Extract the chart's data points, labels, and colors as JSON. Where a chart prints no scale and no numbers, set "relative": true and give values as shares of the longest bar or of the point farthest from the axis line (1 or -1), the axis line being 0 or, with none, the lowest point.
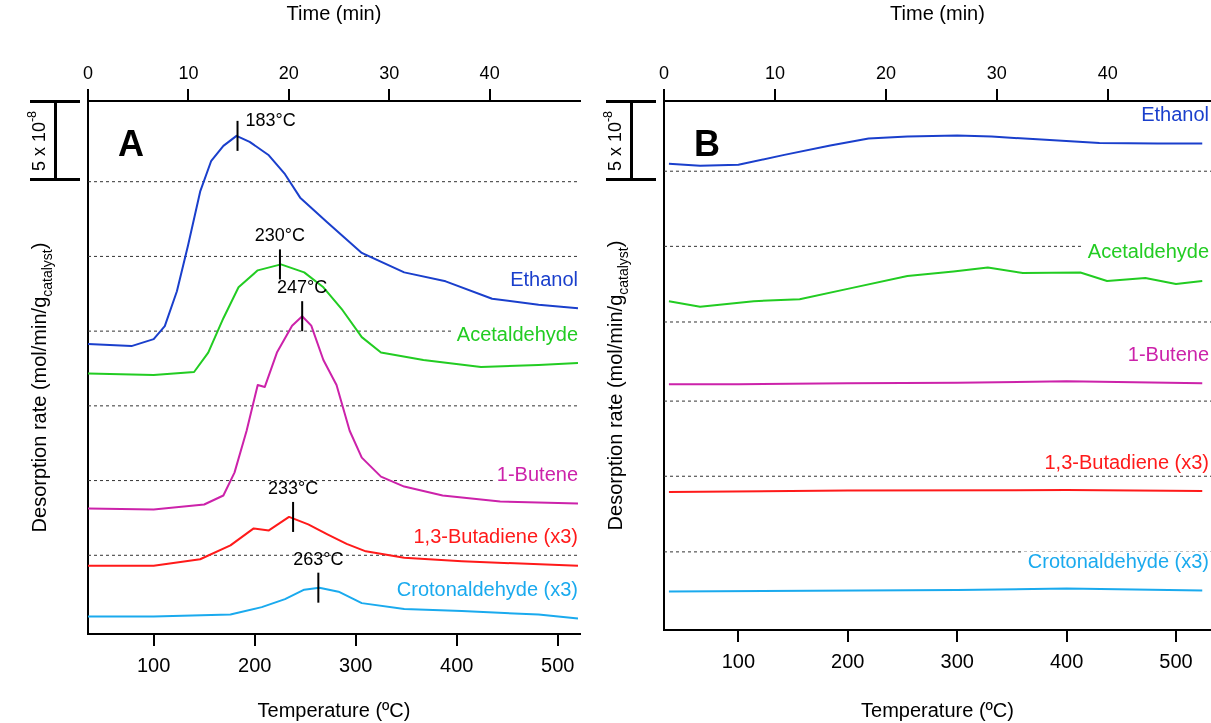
{
  "chart_data": [
    {
      "type": "line",
      "title": "A",
      "xlabel": "Temperature (ºC)",
      "ylabel": "Desorption rate (mol/min/g$_{catalyst}$)",
      "x2label": "Time (min)",
      "relative": true,
      "xlim": [
        35,
        522
      ],
      "xticks": [
        100,
        200,
        300,
        400,
        500
      ],
      "x2lim": [
        0,
        49
      ],
      "x2ticks": [
        0,
        10,
        20,
        30,
        40
      ],
      "series": [
        {
          "name": "Ethanol",
          "color": "#1a3fcc",
          "x": [
            35,
            78,
            100,
            111,
            123,
            134,
            146,
            157,
            169,
            182,
            195,
            214,
            230,
            245,
            272,
            306,
            348,
            389,
            435,
            481,
            520
          ],
          "values": [
            0.582,
            0.578,
            0.592,
            0.618,
            0.688,
            0.78,
            0.888,
            0.95,
            0.98,
            1.0,
            0.988,
            0.961,
            0.923,
            0.876,
            0.826,
            0.765,
            0.726,
            0.708,
            0.673,
            0.661,
            0.654
          ]
        },
        {
          "name": "Acetaldehyde",
          "color": "#22cc22",
          "x": [
            35,
            100,
            140,
            154,
            169,
            184,
            203,
            226,
            249,
            268,
            287,
            306,
            325,
            367,
            424,
            481,
            520
          ],
          "values": [
            0.523,
            0.52,
            0.526,
            0.565,
            0.634,
            0.696,
            0.73,
            0.742,
            0.726,
            0.696,
            0.65,
            0.596,
            0.565,
            0.55,
            0.536,
            0.54,
            0.544
          ]
        },
        {
          "name": "1-Butene",
          "color": "#cc22aa",
          "x": [
            35,
            100,
            150,
            169,
            180,
            192,
            203,
            210,
            222,
            237,
            247,
            256,
            268,
            281,
            294,
            306,
            325,
            348,
            386,
            443,
            520
          ],
          "values": [
            0.252,
            0.25,
            0.26,
            0.278,
            0.324,
            0.408,
            0.5,
            0.496,
            0.565,
            0.619,
            0.638,
            0.619,
            0.55,
            0.5,
            0.408,
            0.354,
            0.316,
            0.296,
            0.278,
            0.266,
            0.262
          ]
        },
        {
          "name": "1,3-Butadiene (x3)",
          "color": "#ff1a1a",
          "x": [
            35,
            100,
            146,
            176,
            199,
            214,
            234,
            253,
            272,
            291,
            310,
            348,
            405,
            520
          ],
          "values": [
            0.137,
            0.137,
            0.15,
            0.178,
            0.212,
            0.208,
            0.235,
            0.22,
            0.2,
            0.181,
            0.166,
            0.153,
            0.146,
            0.137
          ]
        },
        {
          "name": "Crotonaldehyde (x3)",
          "color": "#1aaaee",
          "x": [
            35,
            100,
            176,
            207,
            230,
            249,
            264,
            283,
            306,
            348,
            405,
            481,
            520
          ],
          "values": [
            0.035,
            0.035,
            0.039,
            0.054,
            0.07,
            0.089,
            0.093,
            0.085,
            0.062,
            0.05,
            0.046,
            0.039,
            0.031
          ]
        }
      ],
      "ref_lines": [
        {
          "axis": "y",
          "value": 0.908
        },
        {
          "axis": "y",
          "value": 0.758
        },
        {
          "axis": "y",
          "value": 0.608
        },
        {
          "axis": "y",
          "value": 0.458
        },
        {
          "axis": "y",
          "value": 0.308
        },
        {
          "axis": "y",
          "value": 0.158
        }
      ],
      "annotations": [
        "5 x 10$^{-8}$",
        {
          "text": "183°C",
          "x": 183,
          "y": 1.0
        },
        {
          "text": "230°C",
          "x": 225,
          "y": 0.742
        },
        {
          "text": "247°C",
          "x": 247,
          "y": 0.638
        },
        {
          "text": "233°C",
          "x": 238,
          "y": 0.235
        },
        {
          "text": "263°C",
          "x": 263,
          "y": 0.093
        }
      ]
    },
    {
      "type": "line",
      "title": "B",
      "xlabel": "Temperature (ºC)",
      "ylabel": "Desorption rate (mol/min/g$_{catalyst}$)",
      "x2label": "Time (min)",
      "relative": true,
      "xlim": [
        32,
        532
      ],
      "xticks": [
        100,
        200,
        300,
        400,
        500
      ],
      "x2lim": [
        0,
        49.3
      ],
      "x2ticks": [
        0,
        10,
        20,
        30,
        40
      ],
      "series": [
        {
          "name": "Ethanol",
          "color": "#1a3fcc",
          "x": [
            36.5,
            65,
            100,
            142,
            184,
            219,
            254.5,
            300,
            331.5,
            377,
            430,
            483,
            524
          ],
          "values": [
            0.943,
            0.939,
            0.941,
            0.961,
            0.98,
            0.994,
            0.998,
            1.0,
            0.998,
            0.992,
            0.985,
            0.984,
            0.984
          ]
        },
        {
          "name": "Acetaldehyde",
          "color": "#22cc22",
          "x": [
            36.5,
            65,
            114,
            156,
            202,
            254.5,
            296.6,
            328,
            360,
            412.6,
            437,
            472,
            500,
            524
          ],
          "values": [
            0.665,
            0.654,
            0.665,
            0.669,
            0.691,
            0.716,
            0.725,
            0.733,
            0.722,
            0.723,
            0.706,
            0.712,
            0.7,
            0.706
          ]
        },
        {
          "name": "1-Butene",
          "color": "#cc22aa",
          "x": [
            36.5,
            100,
            200,
            300,
            400,
            524
          ],
          "values": [
            0.497,
            0.497,
            0.499,
            0.5,
            0.503,
            0.499
          ]
        },
        {
          "name": "1,3-Butadiene (x3)",
          "color": "#ff1a1a",
          "x": [
            36.5,
            200,
            400,
            524
          ],
          "values": [
            0.279,
            0.282,
            0.283,
            0.281
          ]
        },
        {
          "name": "Crotonaldehyde (x3)",
          "color": "#1aaaee",
          "x": [
            36.5,
            300,
            400,
            524
          ],
          "values": [
            0.078,
            0.081,
            0.084,
            0.08
          ]
        }
      ],
      "ref_lines": [
        {
          "axis": "y",
          "value": 0.928
        },
        {
          "axis": "y",
          "value": 0.776
        },
        {
          "axis": "y",
          "value": 0.623
        },
        {
          "axis": "y",
          "value": 0.463
        },
        {
          "axis": "y",
          "value": 0.311
        },
        {
          "axis": "y",
          "value": 0.158
        }
      ],
      "annotations": [
        "5 x 10$^{-8}$"
      ]
    }
  ]
}
